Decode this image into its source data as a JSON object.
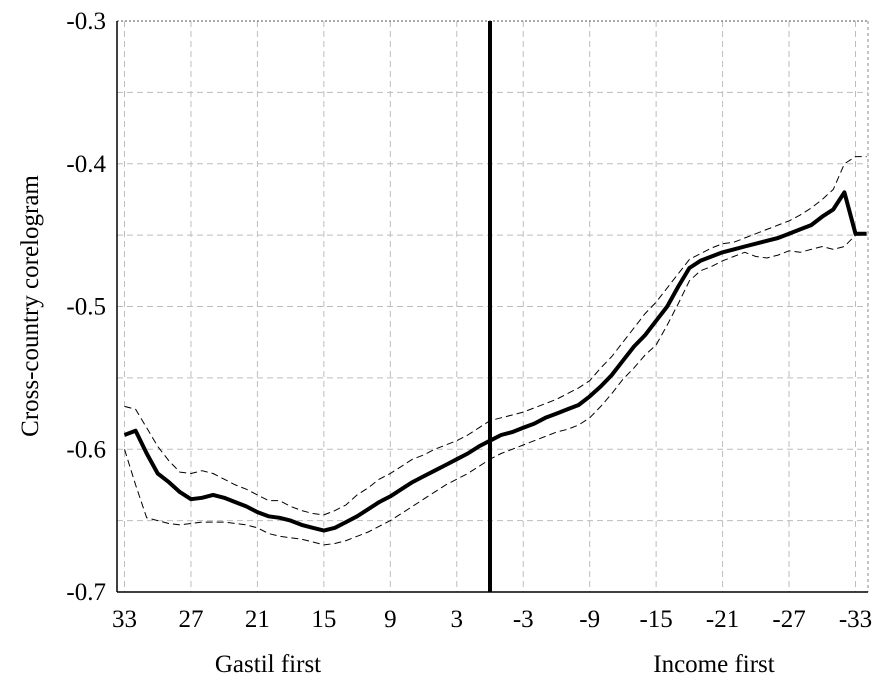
{
  "chart_data": {
    "type": "line",
    "title": "",
    "ylabel": "Cross-country corelogram",
    "xlabel_left": "Gastil first",
    "xlabel_right": "Income first",
    "ylim": [
      -0.7,
      -0.3
    ],
    "yticks": [
      -0.7,
      -0.6,
      -0.5,
      -0.4,
      -0.3
    ],
    "ytick_labels": [
      "-0.7",
      "-0.6",
      "-0.5",
      "-0.4",
      "-0.3"
    ],
    "xlim": [
      33,
      -34
    ],
    "xticks": [
      33,
      27,
      21,
      15,
      9,
      3,
      -3,
      -9,
      -15,
      -21,
      -27,
      -33
    ],
    "xtick_labels": [
      "33",
      "27",
      "21",
      "15",
      "9",
      "3",
      "-3",
      "-9",
      "-15",
      "-21",
      "-27",
      "-33"
    ],
    "vertical_line_x": 0,
    "grid": true,
    "x": [
      33,
      32,
      31,
      30,
      29,
      28,
      27,
      26,
      25,
      24,
      23,
      22,
      21,
      20,
      19,
      18,
      17,
      16,
      15,
      14,
      13,
      12,
      11,
      10,
      9,
      8,
      7,
      6,
      5,
      4,
      3,
      2,
      1,
      0,
      -1,
      -2,
      -3,
      -4,
      -5,
      -6,
      -7,
      -8,
      -9,
      -10,
      -11,
      -12,
      -13,
      -14,
      -15,
      -16,
      -17,
      -18,
      -19,
      -20,
      -21,
      -22,
      -23,
      -24,
      -25,
      -26,
      -27,
      -28,
      -29,
      -30,
      -31,
      -32,
      -33,
      -34
    ],
    "series": [
      {
        "style": "thick",
        "values": [
          -0.59,
          -0.587,
          -0.603,
          -0.617,
          -0.623,
          -0.63,
          -0.635,
          -0.634,
          -0.632,
          -0.634,
          -0.637,
          -0.64,
          -0.644,
          -0.647,
          -0.648,
          -0.65,
          -0.653,
          -0.655,
          -0.657,
          -0.655,
          -0.651,
          -0.647,
          -0.642,
          -0.637,
          -0.633,
          -0.628,
          -0.623,
          -0.619,
          -0.615,
          -0.611,
          -0.607,
          -0.603,
          -0.598,
          -0.594,
          -0.59,
          -0.588,
          -0.585,
          -0.582,
          -0.578,
          -0.575,
          -0.572,
          -0.569,
          -0.563,
          -0.556,
          -0.548,
          -0.538,
          -0.528,
          -0.52,
          -0.51,
          -0.5,
          -0.486,
          -0.473,
          -0.468,
          -0.465,
          -0.462,
          -0.46,
          -0.458,
          -0.456,
          -0.454,
          -0.452,
          -0.449,
          -0.446,
          -0.443,
          -0.437,
          -0.432,
          -0.42,
          -0.449,
          -0.449
        ]
      },
      {
        "style": "dashed-upper",
        "values": [
          -0.57,
          -0.572,
          -0.585,
          -0.598,
          -0.608,
          -0.616,
          -0.617,
          -0.615,
          -0.617,
          -0.621,
          -0.625,
          -0.628,
          -0.632,
          -0.636,
          -0.636,
          -0.64,
          -0.643,
          -0.645,
          -0.646,
          -0.643,
          -0.639,
          -0.632,
          -0.627,
          -0.621,
          -0.617,
          -0.612,
          -0.607,
          -0.604,
          -0.6,
          -0.597,
          -0.594,
          -0.59,
          -0.585,
          -0.58,
          -0.578,
          -0.576,
          -0.574,
          -0.571,
          -0.568,
          -0.565,
          -0.561,
          -0.557,
          -0.552,
          -0.543,
          -0.535,
          -0.525,
          -0.515,
          -0.505,
          -0.497,
          -0.487,
          -0.477,
          -0.467,
          -0.463,
          -0.459,
          -0.456,
          -0.455,
          -0.452,
          -0.449,
          -0.446,
          -0.443,
          -0.44,
          -0.436,
          -0.431,
          -0.425,
          -0.418,
          -0.4,
          -0.395,
          -0.395
        ]
      },
      {
        "style": "dashed-lower",
        "values": [
          -0.6,
          -0.625,
          -0.648,
          -0.65,
          -0.652,
          -0.653,
          -0.652,
          -0.651,
          -0.651,
          -0.651,
          -0.652,
          -0.653,
          -0.655,
          -0.659,
          -0.661,
          -0.662,
          -0.663,
          -0.665,
          -0.667,
          -0.666,
          -0.664,
          -0.661,
          -0.658,
          -0.654,
          -0.65,
          -0.645,
          -0.64,
          -0.635,
          -0.63,
          -0.625,
          -0.621,
          -0.617,
          -0.612,
          -0.607,
          -0.603,
          -0.6,
          -0.597,
          -0.594,
          -0.591,
          -0.588,
          -0.586,
          -0.583,
          -0.578,
          -0.57,
          -0.561,
          -0.551,
          -0.543,
          -0.534,
          -0.527,
          -0.513,
          -0.498,
          -0.482,
          -0.475,
          -0.472,
          -0.468,
          -0.465,
          -0.462,
          -0.465,
          -0.466,
          -0.464,
          -0.461,
          -0.462,
          -0.46,
          -0.458,
          -0.46,
          -0.458,
          -0.45,
          -0.45
        ]
      }
    ]
  }
}
